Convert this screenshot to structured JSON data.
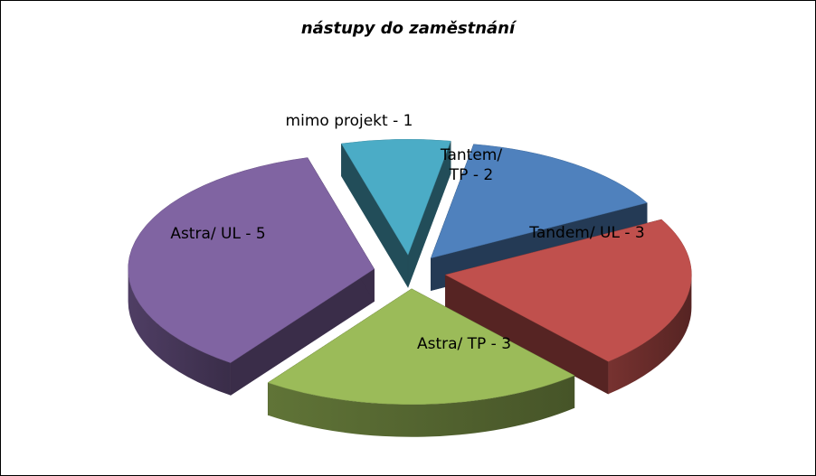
{
  "chart_data": {
    "type": "pie",
    "title": "nástupy do zaměstnání",
    "legend": "none",
    "slices": [
      {
        "label": [
          "Tantem/",
          "TP - 2"
        ],
        "value": 2,
        "color": "#4F81BD"
      },
      {
        "label": [
          "Tandem/ UL - 3"
        ],
        "value": 3,
        "color": "#C0504D"
      },
      {
        "label": [
          "Astra/ TP - 3"
        ],
        "value": 3,
        "color": "#9BBB59"
      },
      {
        "label": [
          "Astra/ UL - 5"
        ],
        "value": 5,
        "color": "#8064A2"
      },
      {
        "label": [
          "mimo projekt - 1"
        ],
        "value": 1,
        "color": "#4BACC6"
      }
    ]
  }
}
